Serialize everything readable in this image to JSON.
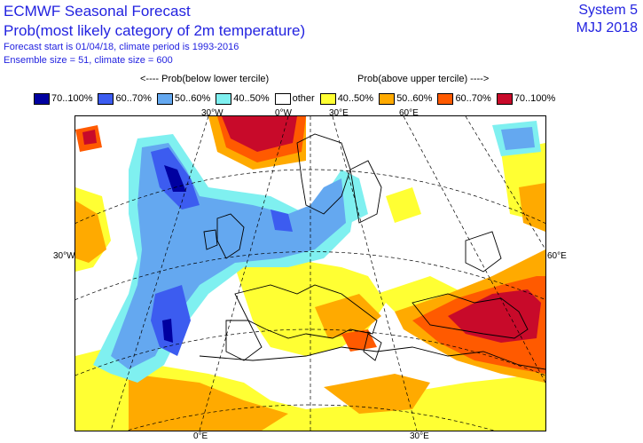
{
  "header": {
    "title": "ECMWF Seasonal Forecast",
    "subtitle": "Prob(most likely category of 2m temperature)",
    "forecast_info": "Forecast start is 01/04/18, climate period is 1993-2016",
    "ensemble_info": "Ensemble size = 51, climate size = 600",
    "system": "System 5",
    "period": "MJJ 2018"
  },
  "legend": {
    "below_caption": "<---- Prob(below lower tercile)",
    "above_caption": "Prob(above upper tercile) ---->",
    "items": [
      {
        "label": "70..100%",
        "color": "#0000a0"
      },
      {
        "label": "60..70%",
        "color": "#3c5cf0"
      },
      {
        "label": "50..60%",
        "color": "#64a8f0"
      },
      {
        "label": "40..50%",
        "color": "#7ff0f0"
      },
      {
        "label": "other",
        "color": "#ffffff"
      },
      {
        "label": "40..50%",
        "color": "#ffff33"
      },
      {
        "label": "50..60%",
        "color": "#ffaa00"
      },
      {
        "label": "60..70%",
        "color": "#ff5a00"
      },
      {
        "label": "70..100%",
        "color": "#c80a2a"
      }
    ]
  },
  "axes": {
    "top": [
      "30°W",
      "0°W",
      "30°E",
      "60°E"
    ],
    "left": "30°W",
    "right": "60°E",
    "bottom": [
      "0°E",
      "30°E"
    ]
  }
}
